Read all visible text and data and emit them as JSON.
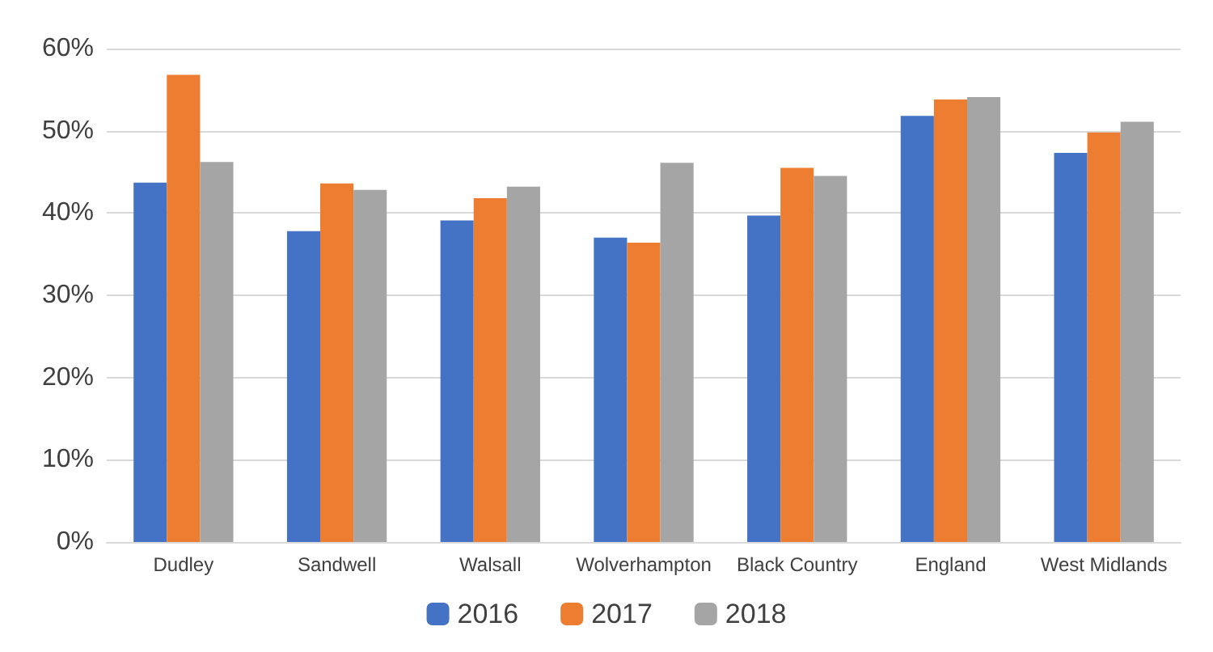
{
  "chart_data": {
    "type": "bar",
    "categories": [
      "Dudley",
      "Sandwell",
      "Walsall",
      "Wolverhampton",
      "Black Country",
      "England",
      "West Midlands"
    ],
    "series": [
      {
        "name": "2016",
        "color": "#4472c4",
        "values": [
          43.7,
          37.8,
          39.1,
          37.0,
          39.7,
          51.8,
          47.3
        ]
      },
      {
        "name": "2017",
        "color": "#ed7d31",
        "values": [
          56.8,
          43.6,
          41.8,
          36.4,
          45.5,
          53.8,
          49.8
        ]
      },
      {
        "name": "2018",
        "color": "#a5a5a5",
        "values": [
          46.2,
          42.8,
          43.2,
          46.1,
          44.5,
          54.1,
          51.1
        ]
      }
    ],
    "ylim": [
      0,
      60
    ],
    "yticks": [
      {
        "value": 0,
        "label": "0%"
      },
      {
        "value": 10,
        "label": "10%"
      },
      {
        "value": 20,
        "label": "20%"
      },
      {
        "value": 30,
        "label": "30%"
      },
      {
        "value": 40,
        "label": "40%"
      },
      {
        "value": 50,
        "label": "50%"
      },
      {
        "value": 60,
        "label": "60%"
      }
    ],
    "grid": "y",
    "legend": "bottom"
  }
}
